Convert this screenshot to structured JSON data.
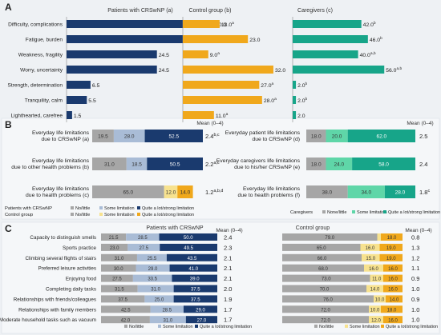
{
  "colors": {
    "navy": "#1a3a6e",
    "orange": "#f0a81c",
    "teal": "#17a589",
    "grey": "#a6a6a6",
    "lightblue": "#a9bcd6",
    "lightyellow": "#f7e28f",
    "lightgreen": "#5fd6a8",
    "panel_bg": "#eef1f4"
  },
  "chart_data": [
    {
      "id": "A",
      "type": "bar",
      "orientation": "horizontal",
      "panel_label": "A",
      "categories": [
        "Difficulty, complications",
        "Fatigue, burden",
        "Weakness, fragility",
        "Worry, uncertainty",
        "Strength, determination",
        "Tranquility, calm",
        "Lighthearted, carefree"
      ],
      "series": [
        {
          "name": "Patients with CRSwNP (a)",
          "values": [
            40.0,
            32.0,
            24.5,
            24.5,
            6.5,
            5.5,
            1.5
          ],
          "labels": [
            "40.0",
            "32.0",
            "24.5",
            "24.5",
            "6.5",
            "5.5",
            "1.5"
          ],
          "sup": [
            "",
            "",
            "",
            "",
            "",
            "",
            ""
          ],
          "color": "navy"
        },
        {
          "name": "Control group (b)",
          "values": [
            13.0,
            23.0,
            9.0,
            32.0,
            27.0,
            28.0,
            11.0
          ],
          "labels": [
            "13.0",
            "23.0",
            "9.0",
            "32.0",
            "27.0",
            "28.0",
            "11.0"
          ],
          "sup": [
            "a",
            "",
            "a",
            "",
            "a",
            "a",
            "a"
          ],
          "color": "orange"
        },
        {
          "name": "Caregivers (c)",
          "values": [
            42.0,
            46.0,
            40.0,
            56.0,
            2.0,
            2.0,
            2.0
          ],
          "labels": [
            "42.0",
            "46.0",
            "40.0",
            "56.0",
            "2.0",
            "2.0",
            "2.0"
          ],
          "sup": [
            "b",
            "b",
            "a,b",
            "a,b",
            "b",
            "b",
            ""
          ],
          "color": "teal"
        }
      ]
    },
    {
      "id": "B-left",
      "type": "bar",
      "stacked": true,
      "panel_label": "B",
      "mean_header": "Mean (0–4)",
      "categories": [
        [
          "Everyday life limitations",
          "due to CRSwNP (a)"
        ],
        [
          "Everyday life limitations",
          "due to other health problems (b)"
        ],
        [
          "Everyday life limitations",
          "due to health problems (c)"
        ]
      ],
      "rows": [
        {
          "segments": [
            19.5,
            28.0,
            52.5
          ],
          "colors": [
            "grey",
            "lightblue",
            "navy"
          ],
          "mean": "2.4",
          "sup": "b,c"
        },
        {
          "segments": [
            31.0,
            18.5,
            50.5
          ],
          "colors": [
            "grey",
            "lightblue",
            "navy"
          ],
          "mean": "2.2",
          "sup": "a,c"
        },
        {
          "segments": [
            65.0,
            12.0,
            14.0
          ],
          "colors": [
            "grey",
            "lightyellow",
            "orange"
          ],
          "mean": "1.2",
          "sup": "a,b,d"
        }
      ],
      "legend_rows": [
        {
          "group": "Patients with CRSwNP",
          "items": [
            {
              "label": "No/little",
              "color": "grey"
            },
            {
              "label": "Some limitation",
              "color": "lightblue"
            },
            {
              "label": "Quite a lot/strong limitation",
              "color": "navy"
            }
          ]
        },
        {
          "group": "Control group",
          "items": [
            {
              "label": "No/little",
              "color": "grey"
            },
            {
              "label": "Some limitation",
              "color": "lightyellow"
            },
            {
              "label": "Quite a lot/strong limitation",
              "color": "orange"
            }
          ]
        }
      ]
    },
    {
      "id": "B-right",
      "type": "bar",
      "stacked": true,
      "mean_header": "Mean (0–4)",
      "categories": [
        [
          "Everyday patient life limitations",
          "due to CRSwNP (d)"
        ],
        [
          "Everyday caregivers life limitations",
          "due to his/her CRSwNP (e)"
        ],
        [
          "Everyday life limitations",
          "due to health problems (f)"
        ]
      ],
      "rows": [
        {
          "segments": [
            18.0,
            20.0,
            62.0
          ],
          "colors": [
            "grey",
            "lightgreen",
            "teal"
          ],
          "mean": "2.5",
          "sup": ""
        },
        {
          "segments": [
            18.0,
            24.0,
            58.0
          ],
          "colors": [
            "grey",
            "lightgreen",
            "teal"
          ],
          "mean": "2.4",
          "sup": ""
        },
        {
          "segments": [
            38.0,
            34.0,
            28.0
          ],
          "colors": [
            "grey",
            "lightgreen",
            "teal"
          ],
          "mean": "1.8",
          "sup": "c"
        }
      ],
      "legend_rows": [
        {
          "group": "Caregivers",
          "items": [
            {
              "label": "None/little",
              "color": "grey"
            },
            {
              "label": "Some limitation",
              "color": "lightgreen"
            },
            {
              "label": "Quite a lot/strong limitation",
              "color": "teal"
            }
          ]
        }
      ]
    },
    {
      "id": "C-left",
      "type": "bar",
      "stacked": true,
      "panel_label": "C",
      "title": "Patients with CRSwNP",
      "mean_header": "Mean (0–4)",
      "categories": [
        "Capacity to distinguish smells",
        "Sports practice",
        "Climbing several flights of stairs",
        "Preferred leisure activities",
        "Enjoying food",
        "Completing daily tasks",
        "Relationships with friends/colleagues",
        "Relationships with family members",
        "Moderate  household tasks such as vacuum"
      ],
      "rows": [
        {
          "segments": [
            21.5,
            28.5,
            50.0
          ],
          "colors": [
            "grey",
            "lightblue",
            "navy"
          ],
          "mean": "2.4"
        },
        {
          "segments": [
            23.0,
            27.5,
            49.5
          ],
          "colors": [
            "grey",
            "lightblue",
            "navy"
          ],
          "mean": "2.3"
        },
        {
          "segments": [
            31.0,
            25.5,
            43.5
          ],
          "colors": [
            "grey",
            "lightblue",
            "navy"
          ],
          "mean": "2.1"
        },
        {
          "segments": [
            30.0,
            29.0,
            41.0
          ],
          "colors": [
            "grey",
            "lightblue",
            "navy"
          ],
          "mean": "2.1"
        },
        {
          "segments": [
            27.5,
            33.5,
            39.0
          ],
          "colors": [
            "grey",
            "lightblue",
            "navy"
          ],
          "mean": "2.1"
        },
        {
          "segments": [
            31.5,
            31.0,
            37.5
          ],
          "colors": [
            "grey",
            "lightblue",
            "navy"
          ],
          "mean": "2.0"
        },
        {
          "segments": [
            37.5,
            25.0,
            37.5
          ],
          "colors": [
            "grey",
            "lightblue",
            "navy"
          ],
          "mean": "1.9"
        },
        {
          "segments": [
            42.5,
            28.5,
            29.0
          ],
          "colors": [
            "grey",
            "lightblue",
            "navy"
          ],
          "mean": "1.7"
        },
        {
          "segments": [
            42.0,
            31.0,
            27.0
          ],
          "colors": [
            "grey",
            "lightblue",
            "navy"
          ],
          "mean": "1.7"
        }
      ],
      "legend": [
        {
          "label": "No/little",
          "color": "grey"
        },
        {
          "label": "Some limitation",
          "color": "lightblue"
        },
        {
          "label": "Quite a lot/strong limitation",
          "color": "navy"
        }
      ]
    },
    {
      "id": "C-right",
      "type": "bar",
      "stacked": true,
      "title": "Control group",
      "mean_header": "Mean (0–4)",
      "rows": [
        {
          "segments": [
            79.0,
            3.0,
            18.0
          ],
          "colors": [
            "grey",
            "lightyellow",
            "orange"
          ],
          "mean": "0.8"
        },
        {
          "segments": [
            65.0,
            16.0,
            19.0
          ],
          "colors": [
            "grey",
            "lightyellow",
            "orange"
          ],
          "mean": "1.3"
        },
        {
          "segments": [
            66.0,
            15.0,
            19.0
          ],
          "colors": [
            "grey",
            "lightyellow",
            "orange"
          ],
          "mean": "1.2"
        },
        {
          "segments": [
            68.0,
            16.0,
            16.0
          ],
          "colors": [
            "grey",
            "lightyellow",
            "orange"
          ],
          "mean": "1.1"
        },
        {
          "segments": [
            73.0,
            11.0,
            16.0
          ],
          "colors": [
            "grey",
            "lightyellow",
            "orange"
          ],
          "mean": "0.9"
        },
        {
          "segments": [
            70.0,
            14.0,
            16.0
          ],
          "colors": [
            "grey",
            "lightyellow",
            "orange"
          ],
          "mean": "1.0"
        },
        {
          "segments": [
            76.0,
            10.0,
            14.0
          ],
          "colors": [
            "grey",
            "lightyellow",
            "orange"
          ],
          "mean": "0.9"
        },
        {
          "segments": [
            72.0,
            10.0,
            18.0
          ],
          "colors": [
            "grey",
            "lightyellow",
            "orange"
          ],
          "mean": "1.0"
        },
        {
          "segments": [
            72.0,
            12.0,
            16.0
          ],
          "colors": [
            "grey",
            "lightyellow",
            "orange"
          ],
          "mean": "1.0"
        }
      ],
      "legend": [
        {
          "label": "No/little",
          "color": "grey"
        },
        {
          "label": "Some limitation",
          "color": "lightyellow"
        },
        {
          "label": "Quite a lot/strong limitation",
          "color": "orange"
        }
      ]
    }
  ]
}
